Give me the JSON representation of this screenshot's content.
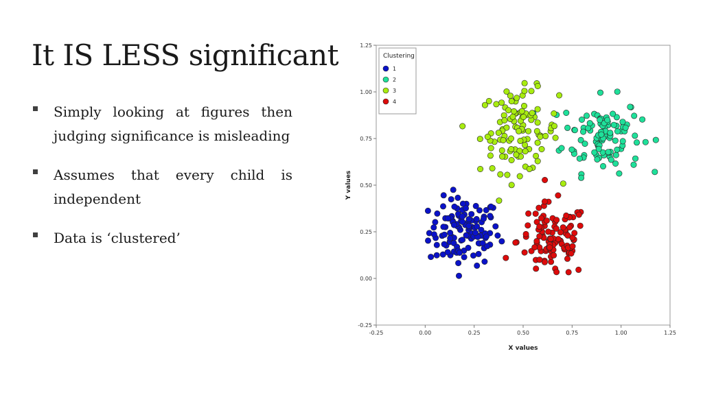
{
  "slide": {
    "title": "It IS LESS significant",
    "bullets": [
      "Simply looking at figures then judging significance is misleading",
      "Assumes that every child is independent",
      "Data is ‘clustered’"
    ]
  },
  "chart_data": {
    "type": "scatter",
    "title": "",
    "xlabel": "X values",
    "ylabel": "Y values",
    "xlim": [
      -0.25,
      1.25
    ],
    "ylim": [
      -0.25,
      1.25
    ],
    "xticks": [
      "-0.25",
      "0.00",
      "0.25",
      "0.50",
      "0.75",
      "1.00",
      "1.25"
    ],
    "yticks": [
      "-0.25",
      "0.00",
      "0.25",
      "0.50",
      "0.75",
      "1.00",
      "1.25"
    ],
    "grid": false,
    "legend": {
      "title": "Clustering",
      "position": "top-left"
    },
    "series": [
      {
        "name": "1",
        "color": "#0a12c8",
        "center": [
          0.2,
          0.25
        ],
        "spread": [
          0.09,
          0.09
        ],
        "count": 120
      },
      {
        "name": "2",
        "color": "#1fe09a",
        "center": [
          0.9,
          0.77
        ],
        "spread": [
          0.1,
          0.1
        ],
        "count": 105
      },
      {
        "name": "3",
        "color": "#a8ec10",
        "center": [
          0.48,
          0.79
        ],
        "spread": [
          0.1,
          0.11
        ],
        "count": 110
      },
      {
        "name": "4",
        "color": "#dd0b0b",
        "center": [
          0.65,
          0.2
        ],
        "spread": [
          0.09,
          0.1
        ],
        "count": 105
      }
    ]
  }
}
